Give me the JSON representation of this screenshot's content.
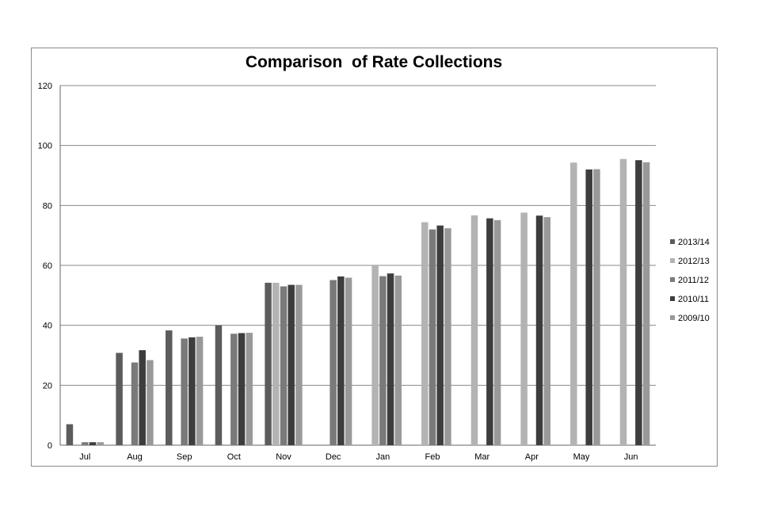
{
  "chart_data": {
    "type": "bar",
    "title": "Comparison  of Rate Collections",
    "xlabel": "",
    "ylabel": "",
    "ylim": [
      0,
      120
    ],
    "yticks": [
      0,
      20,
      40,
      60,
      80,
      100,
      120
    ],
    "grid": true,
    "legend_position": "right",
    "categories": [
      "Jul",
      "Aug",
      "Sep",
      "Oct",
      "Nov",
      "Dec",
      "Jan",
      "Feb",
      "Mar",
      "Apr",
      "May",
      "Jun"
    ],
    "series": [
      {
        "name": "2013/14",
        "color": "#5c5c5c",
        "values": [
          7,
          30.8,
          38.3,
          40,
          54.2,
          null,
          null,
          null,
          null,
          null,
          null,
          null
        ]
      },
      {
        "name": "2012/13",
        "color": "#b3b3b3",
        "values": [
          null,
          null,
          null,
          null,
          54.2,
          null,
          60,
          74.4,
          76.7,
          77.6,
          94.3,
          95.5
        ]
      },
      {
        "name": "2011/12",
        "color": "#7a7a7a",
        "values": [
          1,
          27.6,
          35.6,
          37.2,
          53,
          55.1,
          56.4,
          72,
          null,
          null,
          null,
          null
        ]
      },
      {
        "name": "2010/11",
        "color": "#3d3d3d",
        "values": [
          1,
          31.7,
          36,
          37.4,
          53.5,
          56.3,
          57.3,
          73.3,
          75.7,
          76.6,
          92,
          95.1
        ]
      },
      {
        "name": "2009/10",
        "color": "#999999",
        "values": [
          1,
          28.4,
          36.2,
          37.5,
          53.5,
          55.9,
          56.6,
          72.4,
          75.1,
          76.1,
          92.1,
          94.4
        ]
      }
    ]
  }
}
